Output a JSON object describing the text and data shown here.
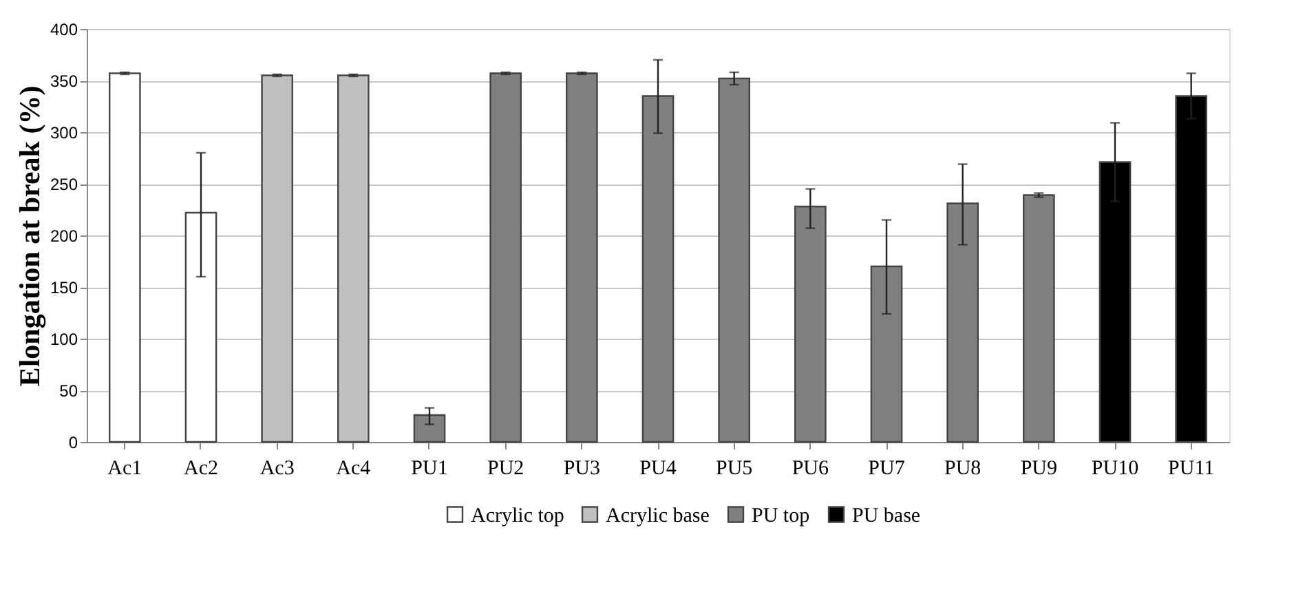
{
  "chart_data": {
    "type": "bar",
    "ylabel": "Elongation at break (%)",
    "categories": [
      "Ac1",
      "Ac2",
      "Ac3",
      "Ac4",
      "PU1",
      "PU2",
      "PU3",
      "PU4",
      "PU5",
      "PU6",
      "PU7",
      "PU8",
      "PU9",
      "PU10",
      "PU11"
    ],
    "series": [
      {
        "name": "Acrylic top",
        "color": "#ffffff",
        "values": [
          357,
          222,
          null,
          null,
          null,
          null,
          null,
          null,
          null,
          null,
          null,
          null,
          null,
          null,
          null
        ],
        "errors": [
          [
            356,
            358
          ],
          [
            160,
            280
          ],
          null,
          null,
          null,
          null,
          null,
          null,
          null,
          null,
          null,
          null,
          null,
          null,
          null
        ]
      },
      {
        "name": "Acrylic base",
        "color": "#c0c0c0",
        "values": [
          null,
          null,
          355,
          355,
          null,
          null,
          null,
          null,
          null,
          null,
          null,
          null,
          null,
          null,
          null
        ],
        "errors": [
          null,
          null,
          [
            354,
            356
          ],
          [
            354,
            356
          ],
          null,
          null,
          null,
          null,
          null,
          null,
          null,
          null,
          null,
          null,
          null
        ]
      },
      {
        "name": "PU top",
        "color": "#808080",
        "values": [
          null,
          null,
          null,
          null,
          26,
          357,
          357,
          335,
          352,
          228,
          170,
          231,
          239,
          null,
          null
        ],
        "errors": [
          null,
          null,
          null,
          null,
          [
            17,
            33
          ],
          [
            356,
            358
          ],
          [
            356,
            358
          ],
          [
            299,
            370
          ],
          [
            346,
            358
          ],
          [
            207,
            245
          ],
          [
            124,
            215
          ],
          [
            191,
            269
          ],
          [
            237,
            241
          ],
          null,
          null
        ]
      },
      {
        "name": "PU base",
        "color": "#000000",
        "values": [
          null,
          null,
          null,
          null,
          null,
          null,
          null,
          null,
          null,
          null,
          null,
          null,
          null,
          271,
          335
        ],
        "errors": [
          null,
          null,
          null,
          null,
          null,
          null,
          null,
          null,
          null,
          null,
          null,
          null,
          null,
          [
            233,
            309
          ],
          [
            313,
            357
          ]
        ]
      }
    ],
    "ylim": [
      0,
      400
    ],
    "yticks": [
      0,
      50,
      100,
      150,
      200,
      250,
      300,
      350,
      400
    ],
    "grid": "y",
    "legend": "bottom"
  }
}
